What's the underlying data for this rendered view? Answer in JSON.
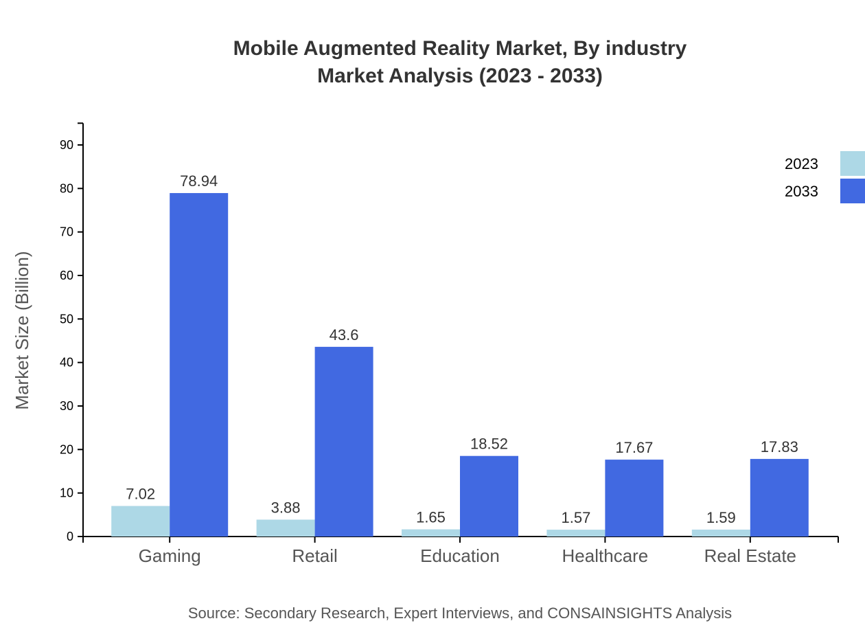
{
  "chart_data": {
    "type": "bar",
    "title": [
      "Mobile Augmented Reality Market, By industry",
      "Market Analysis (2023 - 2033)"
    ],
    "xlabel": "",
    "ylabel": "Market Size (Billion)",
    "ylim": [
      0,
      95
    ],
    "yticks": [
      0,
      10,
      20,
      30,
      40,
      50,
      60,
      70,
      80,
      90
    ],
    "categories": [
      "Gaming",
      "Retail",
      "Education",
      "Healthcare",
      "Real Estate"
    ],
    "series": [
      {
        "name": "2023",
        "color": "#add8e6",
        "values": [
          7.02,
          3.88,
          1.65,
          1.57,
          1.59
        ]
      },
      {
        "name": "2033",
        "color": "#4169e1",
        "values": [
          78.94,
          43.6,
          18.52,
          17.67,
          17.83
        ]
      }
    ],
    "legend": "top-right",
    "grid": false,
    "source": "Source: Secondary Research, Expert Interviews, and CONSAINSIGHTS Analysis"
  }
}
